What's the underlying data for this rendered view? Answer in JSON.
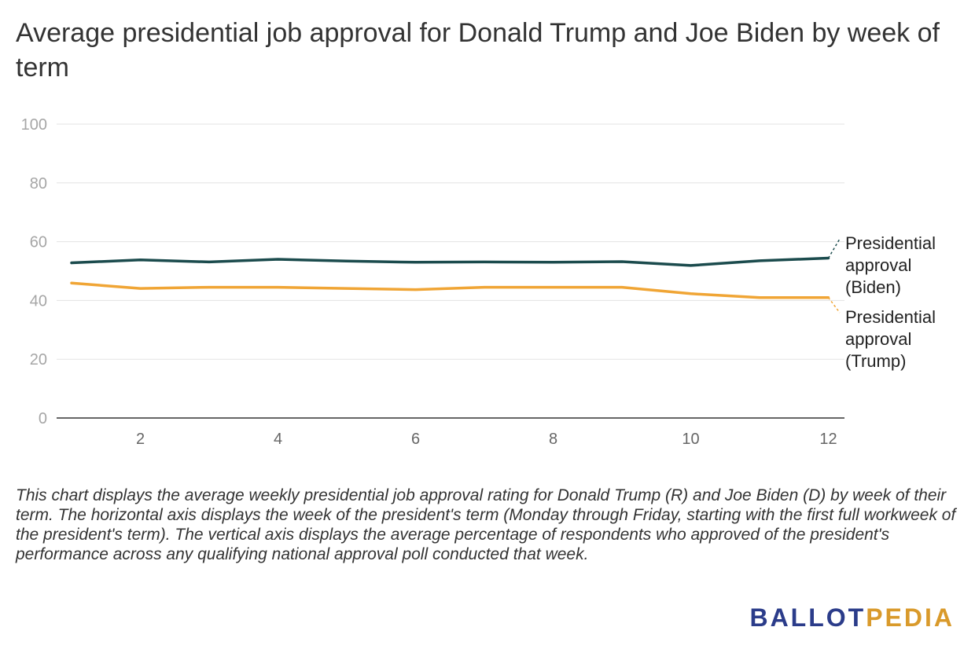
{
  "title": "Average presidential job approval for Donald Trump and Joe Biden by week of term",
  "caption": "This chart displays the average weekly presidential job approval rating for Donald Trump (R) and Joe Biden (D) by week of their term. The horizontal axis displays the week of the president's term (Monday through Friday, starting with the first full workweek of the president's term). The vertical axis displays the average percentage of respondents who approved of the president's performance across any qualifying national approval poll conducted that week.",
  "logo": {
    "part1": "BALLOT",
    "part2": "PEDIA"
  },
  "chart_data": {
    "type": "line",
    "x": [
      1,
      2,
      3,
      4,
      5,
      6,
      7,
      8,
      9,
      10,
      11,
      12
    ],
    "xlim": [
      1,
      12.2
    ],
    "ylim": [
      0,
      100
    ],
    "x_ticks": [
      2,
      4,
      6,
      8,
      10,
      12
    ],
    "y_ticks": [
      0,
      20,
      40,
      60,
      80,
      100
    ],
    "grid": true,
    "legend": "right-end labels",
    "series": [
      {
        "name": "Presidential approval (Biden)",
        "label_lines": [
          "Presidential",
          "approval",
          "(Biden)"
        ],
        "color": "#1b4b4d",
        "values": [
          52.8,
          53.8,
          53.1,
          54.0,
          53.4,
          53.0,
          53.1,
          53.0,
          53.2,
          51.9,
          53.5,
          54.4
        ]
      },
      {
        "name": "Presidential approval (Trump)",
        "label_lines": [
          "Presidential",
          "approval",
          "(Trump)"
        ],
        "color": "#f0a535",
        "values": [
          45.9,
          44.1,
          44.5,
          44.5,
          44.1,
          43.7,
          44.5,
          44.5,
          44.5,
          42.3,
          41.0,
          41.0
        ]
      }
    ]
  }
}
